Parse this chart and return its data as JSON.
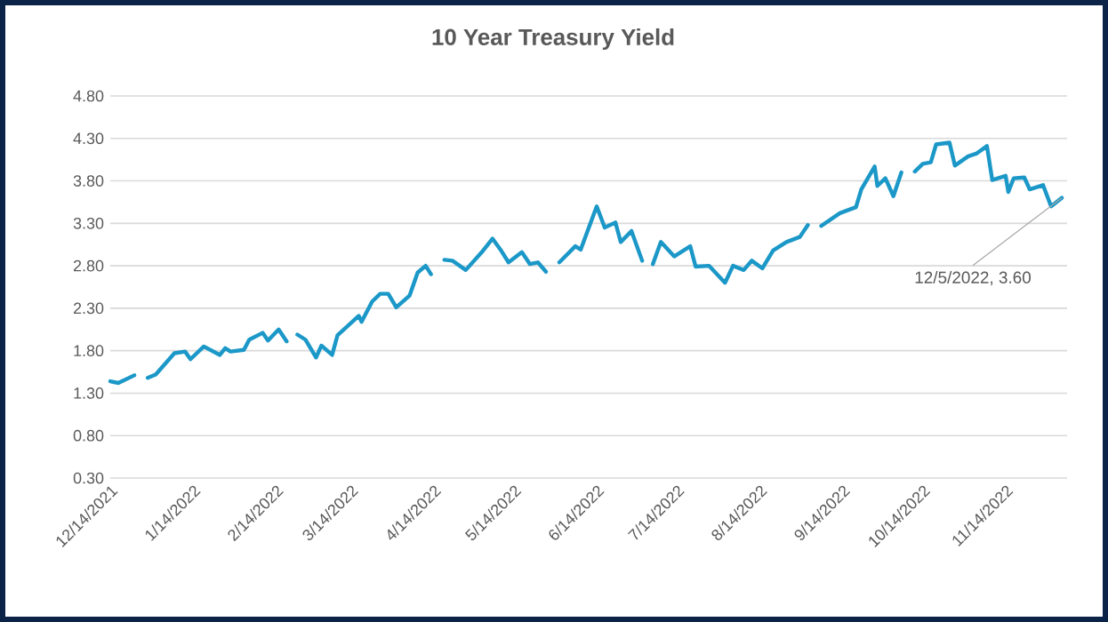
{
  "chart_data": {
    "type": "line",
    "title": "10 Year Treasury Yield",
    "x": [
      "2021-12-14",
      "2021-12-17",
      "2021-12-23",
      null,
      "2021-12-28",
      "2021-12-31",
      "2022-01-07",
      "2022-01-11",
      "2022-01-13",
      "2022-01-18",
      "2022-01-24",
      "2022-01-26",
      "2022-01-28",
      "2022-02-02",
      "2022-02-04",
      "2022-02-09",
      "2022-02-11",
      "2022-02-15",
      "2022-02-18",
      null,
      "2022-02-22",
      "2022-02-25",
      "2022-03-01",
      "2022-03-03",
      "2022-03-07",
      "2022-03-09",
      "2022-03-17",
      "2022-03-18",
      "2022-03-22",
      "2022-03-25",
      "2022-03-28",
      "2022-03-31",
      "2022-04-05",
      "2022-04-08",
      "2022-04-11",
      "2022-04-13",
      null,
      "2022-04-18",
      "2022-04-21",
      "2022-04-26",
      "2022-05-02",
      "2022-05-06",
      "2022-05-09",
      "2022-05-12",
      "2022-05-17",
      "2022-05-20",
      "2022-05-23",
      "2022-05-26",
      null,
      "2022-05-31",
      "2022-06-06",
      "2022-06-08",
      "2022-06-14",
      "2022-06-17",
      "2022-06-21",
      "2022-06-23",
      "2022-06-27",
      "2022-07-01",
      null,
      "2022-07-05",
      "2022-07-08",
      "2022-07-13",
      "2022-07-19",
      "2022-07-21",
      "2022-07-26",
      "2022-08-01",
      "2022-08-04",
      "2022-08-08",
      "2022-08-11",
      "2022-08-15",
      "2022-08-19",
      "2022-08-24",
      "2022-08-29",
      "2022-09-01",
      null,
      "2022-09-06",
      "2022-09-13",
      "2022-09-19",
      "2022-09-21",
      "2022-09-26",
      "2022-09-27",
      "2022-09-30",
      "2022-10-03",
      "2022-10-06",
      null,
      "2022-10-11",
      "2022-10-14",
      "2022-10-17",
      "2022-10-19",
      "2022-10-24",
      "2022-10-26",
      "2022-10-31",
      "2022-11-03",
      "2022-11-07",
      "2022-11-09",
      "2022-11-14",
      "2022-11-15",
      "2022-11-17",
      "2022-11-21",
      "2022-11-23",
      "2022-11-28",
      "2022-12-01",
      "2022-12-05"
    ],
    "series": [
      {
        "color": "#1b98c8",
        "values": [
          1.44,
          1.42,
          1.51,
          null,
          1.48,
          1.52,
          1.77,
          1.79,
          1.7,
          1.85,
          1.75,
          1.83,
          1.79,
          1.81,
          1.93,
          2.01,
          1.92,
          2.05,
          1.91,
          null,
          1.99,
          1.93,
          1.72,
          1.86,
          1.75,
          1.98,
          2.21,
          2.14,
          2.38,
          2.47,
          2.47,
          2.31,
          2.45,
          2.72,
          2.8,
          2.7,
          null,
          2.87,
          2.86,
          2.75,
          2.96,
          3.12,
          2.99,
          2.84,
          2.96,
          2.82,
          2.84,
          2.73,
          null,
          2.84,
          3.03,
          2.99,
          3.5,
          3.25,
          3.31,
          3.08,
          3.21,
          2.86,
          null,
          2.82,
          3.08,
          2.91,
          3.03,
          2.79,
          2.8,
          2.6,
          2.8,
          2.75,
          2.86,
          2.77,
          2.98,
          3.08,
          3.14,
          3.28,
          null,
          3.27,
          3.42,
          3.49,
          3.7,
          3.97,
          3.74,
          3.83,
          3.62,
          3.9,
          null,
          3.91,
          4.0,
          4.02,
          4.23,
          4.25,
          3.98,
          4.09,
          4.12,
          4.21,
          3.81,
          3.86,
          3.67,
          3.83,
          3.84,
          3.7,
          3.75,
          3.5,
          3.6
        ]
      }
    ],
    "xlim": [
      "2021-12-14",
      "2022-12-07"
    ],
    "xticks": [
      {
        "value": "2021-12-14",
        "label": "12/14/2021"
      },
      {
        "value": "2022-01-14",
        "label": "1/14/2022"
      },
      {
        "value": "2022-02-14",
        "label": "2/14/2022"
      },
      {
        "value": "2022-03-14",
        "label": "3/14/2022"
      },
      {
        "value": "2022-04-14",
        "label": "4/14/2022"
      },
      {
        "value": "2022-05-14",
        "label": "5/14/2022"
      },
      {
        "value": "2022-06-14",
        "label": "6/14/2022"
      },
      {
        "value": "2022-07-14",
        "label": "7/14/2022"
      },
      {
        "value": "2022-08-14",
        "label": "8/14/2022"
      },
      {
        "value": "2022-09-14",
        "label": "9/14/2022"
      },
      {
        "value": "2022-10-14",
        "label": "10/14/2022"
      },
      {
        "value": "2022-11-14",
        "label": "11/14/2022"
      }
    ],
    "ylim": [
      0.3,
      4.8
    ],
    "yticks": [
      {
        "value": 0.3,
        "label": "0.30"
      },
      {
        "value": 0.8,
        "label": "0.80"
      },
      {
        "value": 1.3,
        "label": "1.30"
      },
      {
        "value": 1.8,
        "label": "1.80"
      },
      {
        "value": 2.3,
        "label": "2.30"
      },
      {
        "value": 2.8,
        "label": "2.80"
      },
      {
        "value": 3.3,
        "label": "3.30"
      },
      {
        "value": 3.8,
        "label": "3.80"
      },
      {
        "value": 4.3,
        "label": "4.30"
      },
      {
        "value": 4.8,
        "label": "4.80"
      }
    ],
    "grid": "y",
    "annotations": [
      {
        "text": "12/5/2022, 3.60",
        "x": "2022-12-05",
        "y": 3.6
      }
    ]
  }
}
